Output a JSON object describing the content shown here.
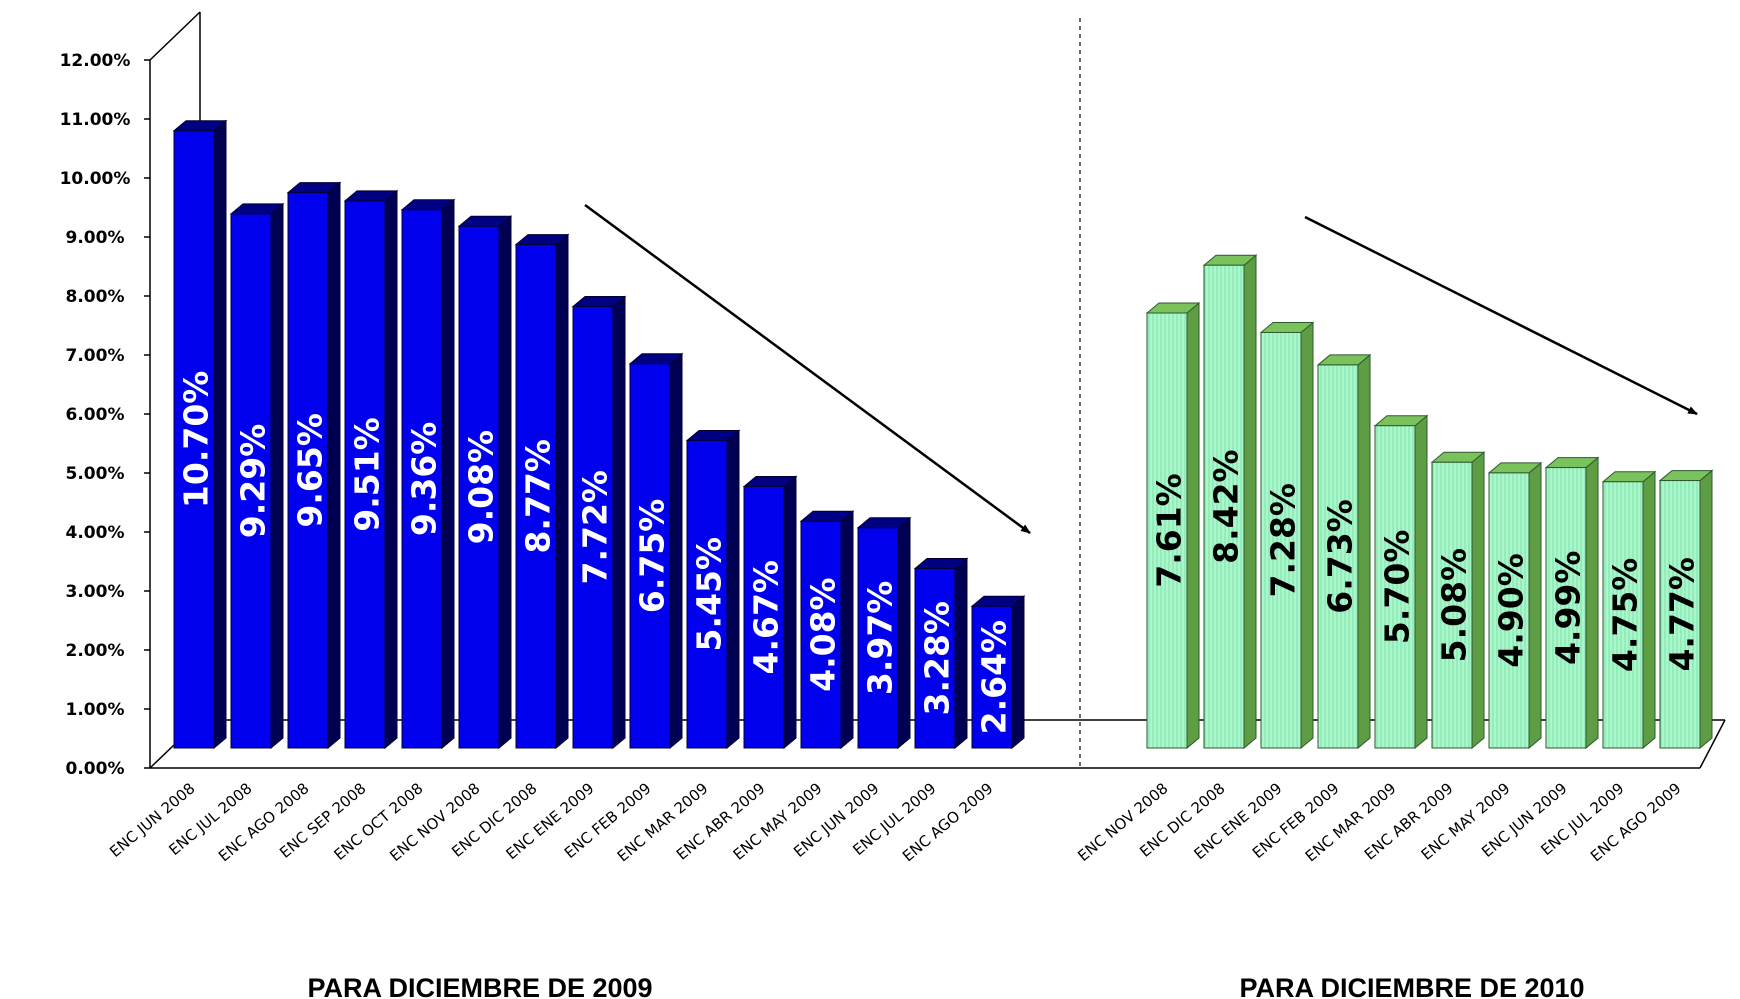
{
  "chart_data": [
    {
      "type": "bar",
      "title": "PARA  DICIEMBRE DE 2009",
      "categories": [
        "ENC JUN 2008",
        "ENC JUL 2008",
        "ENC AGO 2008",
        "ENC SEP 2008",
        "ENC OCT 2008",
        "ENC NOV 2008",
        "ENC DIC 2008",
        "ENC ENE 2009",
        "ENC FEB 2009",
        "ENC MAR 2009",
        "ENC ABR 2009",
        "ENC MAY 2009",
        "ENC JUN 2009",
        "ENC JUL 2009",
        "ENC AGO 2009"
      ],
      "values": [
        10.7,
        9.29,
        9.65,
        9.51,
        9.36,
        9.08,
        8.77,
        7.72,
        6.75,
        5.45,
        4.67,
        4.08,
        3.97,
        3.28,
        2.64
      ],
      "data_labels": [
        "10.70%",
        "9.29%",
        "9.65%",
        "9.51%",
        "9.36%",
        "9.08%",
        "8.77%",
        "7.72%",
        "6.75%",
        "5.45%",
        "4.67%",
        "4.08%",
        "3.97%",
        "3.28%",
        "2.64%"
      ],
      "color": "#0000ee",
      "label_color": "#ffffff",
      "trend_arrow": true
    },
    {
      "type": "bar",
      "title": "PARA  DICIEMBRE DE 2010",
      "categories": [
        "ENC NOV 2008",
        "ENC DIC 2008",
        "ENC ENE 2009",
        "ENC FEB 2009",
        "ENC MAR 2009",
        "ENC ABR 2009",
        "ENC MAY 2009",
        "ENC JUN 2009",
        "ENC JUL 2009",
        "ENC AGO 2009"
      ],
      "values": [
        7.61,
        8.42,
        7.28,
        6.73,
        5.7,
        5.08,
        4.9,
        4.99,
        4.75,
        4.77
      ],
      "data_labels": [
        "7.61%",
        "8.42%",
        "7.28%",
        "6.73%",
        "5.70%",
        "5.08%",
        "4.90%",
        "4.99%",
        "4.75%",
        "4.77%"
      ],
      "color": "#99f0c0",
      "label_color": "#000000",
      "trend_arrow": true
    }
  ],
  "y_axis": {
    "min": 0,
    "max": 12,
    "step": 1,
    "tick_labels": [
      "0.00%",
      "1.00%",
      "2.00%",
      "3.00%",
      "4.00%",
      "5.00%",
      "6.00%",
      "7.00%",
      "8.00%",
      "9.00%",
      "10.00%",
      "11.00%",
      "12.00%"
    ]
  },
  "grid": false,
  "legend": "none",
  "divider": "dashed vertical line between the two groups"
}
